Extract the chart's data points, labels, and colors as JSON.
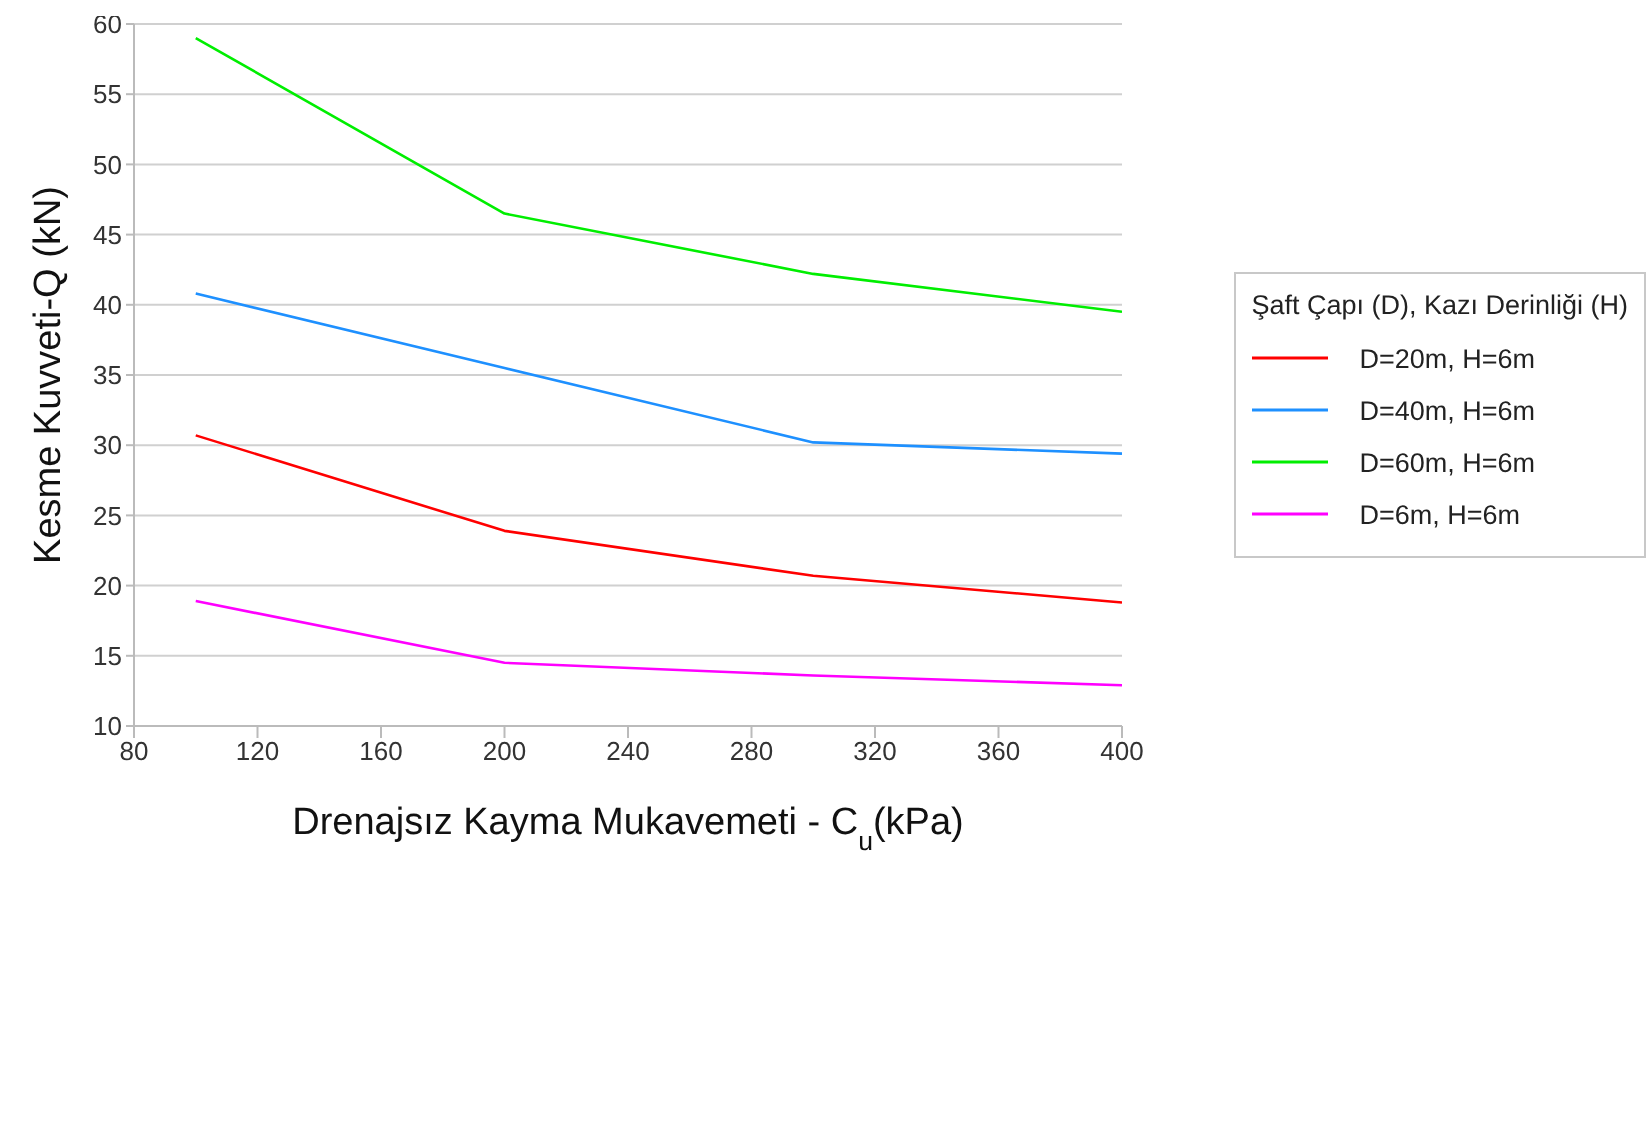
{
  "chart_data": {
    "type": "line",
    "xlabel": "Drenajsız Kayma Mukavemeti - C$_{u}$(kPa)",
    "ylabel": "Kesme Kuvveti-Q (kN)",
    "legend_title": "Şaft Çapı (D), Kazı Derinliği (H)",
    "x": [
      100,
      200,
      300,
      400
    ],
    "series": [
      {
        "name": "D=20m, H=6m",
        "color": "#ff0000",
        "values": [
          30.7,
          23.9,
          20.7,
          18.8
        ]
      },
      {
        "name": "D=40m, H=6m",
        "color": "#1e90ff",
        "values": [
          40.8,
          35.5,
          30.2,
          29.4
        ]
      },
      {
        "name": "D=60m, H=6m",
        "color": "#00ee00",
        "values": [
          59.0,
          46.5,
          42.2,
          39.5
        ]
      },
      {
        "name": "D=6m, H=6m",
        "color": "#ff00ff",
        "values": [
          18.9,
          14.5,
          13.6,
          12.9
        ]
      }
    ],
    "xlim": [
      80,
      400
    ],
    "xticks": [
      80,
      120,
      160,
      200,
      240,
      280,
      320,
      360,
      400
    ],
    "ylim": [
      10,
      60
    ],
    "yticks": [
      10,
      15,
      20,
      25,
      30,
      35,
      40,
      45,
      50,
      55,
      60
    ],
    "grid": "y",
    "legend": "right",
    "marker": "none",
    "line_style": "solid"
  }
}
